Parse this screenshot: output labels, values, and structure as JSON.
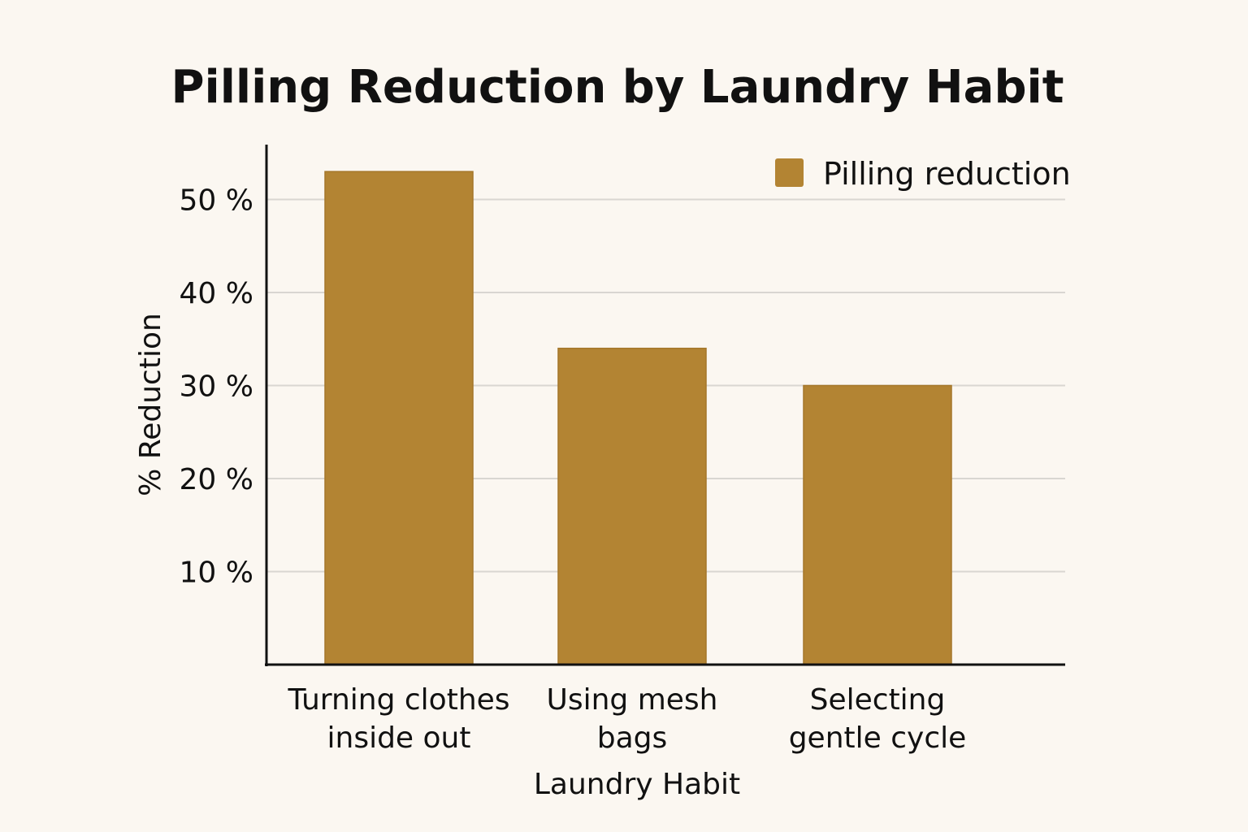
{
  "chart_data": {
    "type": "bar",
    "title": "Pilling Reduction by Laundry Habit",
    "xlabel": "Laundry Habit",
    "ylabel": "% Reduction",
    "categories": [
      [
        "Turning clothes",
        "inside out"
      ],
      [
        "Using mesh",
        "bags"
      ],
      [
        "Selecting",
        "gentle cycle"
      ]
    ],
    "series": [
      {
        "name": "Pilling reduction",
        "values": [
          53,
          34,
          30
        ],
        "color": "#b38433"
      }
    ],
    "yticks": [
      {
        "value": 10,
        "label": "10 %"
      },
      {
        "value": 20,
        "label": "20 %"
      },
      {
        "value": 30,
        "label": "30 %"
      },
      {
        "value": 40,
        "label": "40 %"
      },
      {
        "value": 50,
        "label": "50 %"
      }
    ],
    "ylim": [
      0,
      56
    ],
    "grid": true,
    "legend_position": "top-right"
  }
}
